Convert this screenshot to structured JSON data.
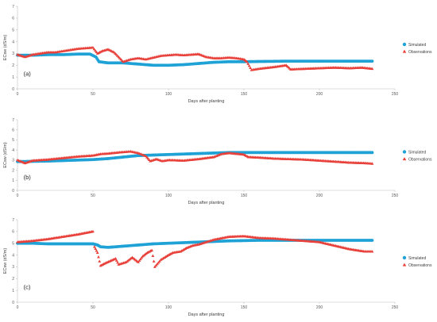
{
  "colors": {
    "simulated": "#1fa2d6",
    "observations": "#e8403a",
    "axis": "#bfbfbf"
  },
  "chart_data": [
    {
      "type": "scatter",
      "panel_label": "(a)",
      "xlabel": "Days after planting",
      "ylabel": "ECsw (dS/m)",
      "xlim": [
        0,
        250
      ],
      "ylim": [
        0,
        7
      ],
      "xticks": [
        "0",
        "50",
        "100",
        "150",
        "200",
        "250"
      ],
      "yticks": [
        "0",
        "1",
        "2",
        "3",
        "4",
        "5",
        "6",
        "7"
      ],
      "legend": [
        "Simulated",
        "Observations"
      ],
      "legend_position": "right",
      "series": [
        {
          "name": "Simulated",
          "marker": "circle",
          "points": [
            [
              0,
              2.85
            ],
            [
              10,
              2.85
            ],
            [
              20,
              2.9
            ],
            [
              30,
              2.9
            ],
            [
              40,
              2.95
            ],
            [
              48,
              2.95
            ],
            [
              52,
              2.7
            ],
            [
              54,
              2.3
            ],
            [
              60,
              2.2
            ],
            [
              70,
              2.2
            ],
            [
              80,
              2.1
            ],
            [
              90,
              2.0
            ],
            [
              100,
              2.0
            ],
            [
              110,
              2.05
            ],
            [
              120,
              2.15
            ],
            [
              130,
              2.25
            ],
            [
              140,
              2.3
            ],
            [
              150,
              2.3
            ],
            [
              160,
              2.32
            ],
            [
              180,
              2.35
            ],
            [
              200,
              2.35
            ],
            [
              220,
              2.35
            ],
            [
              235,
              2.35
            ]
          ]
        },
        {
          "name": "Observations",
          "marker": "triangle",
          "points": [
            [
              0,
              2.9
            ],
            [
              5,
              2.7
            ],
            [
              10,
              2.9
            ],
            [
              15,
              3.0
            ],
            [
              20,
              3.1
            ],
            [
              25,
              3.1
            ],
            [
              30,
              3.2
            ],
            [
              35,
              3.3
            ],
            [
              40,
              3.4
            ],
            [
              45,
              3.45
            ],
            [
              50,
              3.5
            ],
            [
              53,
              3.0
            ],
            [
              56,
              3.2
            ],
            [
              60,
              3.35
            ],
            [
              64,
              3.1
            ],
            [
              67,
              2.7
            ],
            [
              70,
              2.3
            ],
            [
              75,
              2.5
            ],
            [
              80,
              2.6
            ],
            [
              85,
              2.5
            ],
            [
              90,
              2.65
            ],
            [
              95,
              2.8
            ],
            [
              100,
              2.85
            ],
            [
              105,
              2.9
            ],
            [
              110,
              2.85
            ],
            [
              115,
              2.9
            ],
            [
              120,
              2.95
            ],
            [
              125,
              2.7
            ],
            [
              130,
              2.6
            ],
            [
              135,
              2.6
            ],
            [
              140,
              2.65
            ],
            [
              145,
              2.6
            ],
            [
              150,
              2.5
            ],
            [
              152,
              2.3
            ],
            [
              155,
              1.6
            ],
            [
              160,
              1.7
            ],
            [
              170,
              1.85
            ],
            [
              178,
              2.0
            ],
            [
              181,
              1.65
            ],
            [
              190,
              1.7
            ],
            [
              200,
              1.75
            ],
            [
              210,
              1.8
            ],
            [
              220,
              1.75
            ],
            [
              228,
              1.8
            ],
            [
              235,
              1.7
            ]
          ]
        }
      ]
    },
    {
      "type": "scatter",
      "panel_label": "(b)",
      "xlabel": "Days after planting",
      "ylabel": "ECsw (dS/m)",
      "xlim": [
        0,
        250
      ],
      "ylim": [
        0,
        7
      ],
      "xticks": [
        "0",
        "50",
        "100",
        "150",
        "200",
        "250"
      ],
      "yticks": [
        "0",
        "1",
        "2",
        "3",
        "4",
        "5",
        "6",
        "7"
      ],
      "legend": [
        "Simulated",
        "Observations"
      ],
      "legend_position": "right",
      "series": [
        {
          "name": "Simulated",
          "marker": "circle",
          "points": [
            [
              0,
              2.85
            ],
            [
              20,
              2.9
            ],
            [
              40,
              3.0
            ],
            [
              50,
              3.05
            ],
            [
              60,
              3.15
            ],
            [
              70,
              3.3
            ],
            [
              80,
              3.45
            ],
            [
              90,
              3.5
            ],
            [
              100,
              3.55
            ],
            [
              110,
              3.6
            ],
            [
              120,
              3.65
            ],
            [
              130,
              3.7
            ],
            [
              140,
              3.75
            ],
            [
              160,
              3.75
            ],
            [
              180,
              3.75
            ],
            [
              200,
              3.75
            ],
            [
              220,
              3.75
            ],
            [
              235,
              3.75
            ]
          ]
        },
        {
          "name": "Observations",
          "marker": "triangle",
          "points": [
            [
              0,
              3.0
            ],
            [
              5,
              2.7
            ],
            [
              10,
              2.95
            ],
            [
              20,
              3.05
            ],
            [
              30,
              3.2
            ],
            [
              40,
              3.35
            ],
            [
              50,
              3.45
            ],
            [
              55,
              3.6
            ],
            [
              60,
              3.65
            ],
            [
              70,
              3.8
            ],
            [
              75,
              3.85
            ],
            [
              80,
              3.7
            ],
            [
              85,
              3.4
            ],
            [
              88,
              2.9
            ],
            [
              92,
              3.1
            ],
            [
              96,
              2.9
            ],
            [
              100,
              3.0
            ],
            [
              110,
              2.95
            ],
            [
              120,
              3.1
            ],
            [
              130,
              3.3
            ],
            [
              135,
              3.6
            ],
            [
              140,
              3.7
            ],
            [
              150,
              3.55
            ],
            [
              153,
              3.3
            ],
            [
              160,
              3.25
            ],
            [
              170,
              3.15
            ],
            [
              180,
              3.1
            ],
            [
              190,
              3.05
            ],
            [
              200,
              2.95
            ],
            [
              210,
              2.85
            ],
            [
              220,
              2.75
            ],
            [
              230,
              2.7
            ],
            [
              235,
              2.65
            ]
          ]
        }
      ]
    },
    {
      "type": "scatter",
      "panel_label": "(c)",
      "xlabel": "Days after planting",
      "ylabel": "ECsw (dS/m)",
      "xlim": [
        0,
        250
      ],
      "ylim": [
        0,
        7
      ],
      "xticks": [
        "0",
        "50",
        "100",
        "150",
        "200",
        "250"
      ],
      "yticks": [
        "0",
        "1",
        "2",
        "3",
        "4",
        "5",
        "6",
        "7"
      ],
      "legend": [
        "Simulated",
        "Observations"
      ],
      "legend_position": "right",
      "series": [
        {
          "name": "Simulated",
          "marker": "circle",
          "points": [
            [
              0,
              5.0
            ],
            [
              10,
              5.0
            ],
            [
              20,
              4.95
            ],
            [
              30,
              4.95
            ],
            [
              40,
              4.95
            ],
            [
              50,
              4.95
            ],
            [
              53,
              4.85
            ],
            [
              55,
              4.7
            ],
            [
              60,
              4.65
            ],
            [
              70,
              4.75
            ],
            [
              80,
              4.85
            ],
            [
              90,
              4.95
            ],
            [
              100,
              5.0
            ],
            [
              110,
              5.05
            ],
            [
              120,
              5.1
            ],
            [
              130,
              5.15
            ],
            [
              140,
              5.2
            ],
            [
              160,
              5.25
            ],
            [
              180,
              5.25
            ],
            [
              200,
              5.25
            ],
            [
              220,
              5.25
            ],
            [
              235,
              5.25
            ]
          ]
        },
        {
          "name": "Observations",
          "marker": "triangle",
          "points": [
            [
              0,
              5.1
            ],
            [
              10,
              5.2
            ],
            [
              20,
              5.35
            ],
            [
              30,
              5.55
            ],
            [
              40,
              5.75
            ],
            [
              50,
              6.0
            ],
            [
              51,
              4.7
            ],
            [
              53,
              4.2
            ],
            [
              55,
              3.1
            ],
            [
              58,
              3.3
            ],
            [
              65,
              3.7
            ],
            [
              67,
              3.2
            ],
            [
              72,
              3.4
            ],
            [
              76,
              3.8
            ],
            [
              80,
              3.4
            ],
            [
              83,
              3.9
            ],
            [
              86,
              4.2
            ],
            [
              89,
              4.4
            ],
            [
              91,
              3.0
            ],
            [
              95,
              3.6
            ],
            [
              100,
              4.0
            ],
            [
              103,
              4.2
            ],
            [
              108,
              4.3
            ],
            [
              112,
              4.6
            ],
            [
              116,
              4.8
            ],
            [
              120,
              4.9
            ],
            [
              125,
              5.1
            ],
            [
              130,
              5.3
            ],
            [
              140,
              5.55
            ],
            [
              150,
              5.6
            ],
            [
              160,
              5.45
            ],
            [
              170,
              5.4
            ],
            [
              180,
              5.3
            ],
            [
              190,
              5.2
            ],
            [
              200,
              5.1
            ],
            [
              210,
              4.8
            ],
            [
              220,
              4.5
            ],
            [
              230,
              4.3
            ],
            [
              235,
              4.3
            ]
          ]
        }
      ]
    }
  ]
}
